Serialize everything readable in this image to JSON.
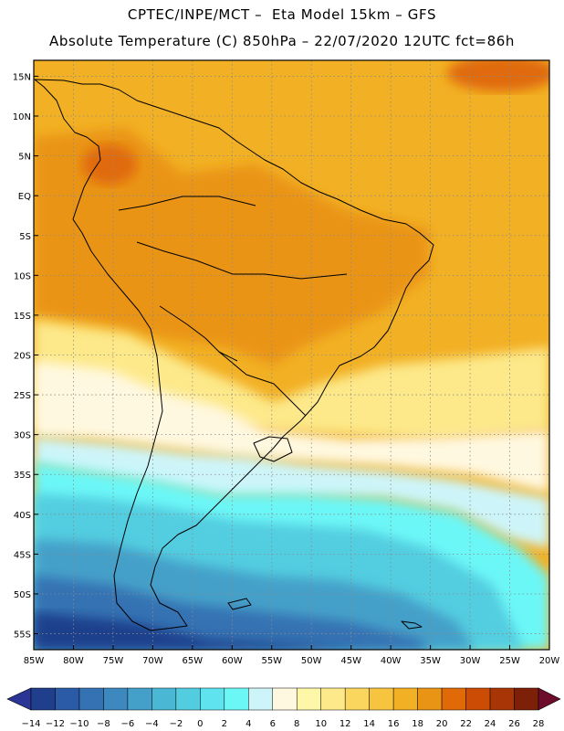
{
  "header": {
    "line1": "CPTEC/INPE/MCT –  Eta Model 15km – GFS",
    "line2": "Absolute Temperature (C) 850hPa – 22/07/2020 12UTC fct=86h"
  },
  "axes": {
    "lat_labels": [
      "15N",
      "10N",
      "5N",
      "EQ",
      "5S",
      "10S",
      "15S",
      "20S",
      "25S",
      "30S",
      "35S",
      "40S",
      "45S",
      "50S",
      "55S"
    ],
    "lat_values": [
      15,
      10,
      5,
      0,
      -5,
      -10,
      -15,
      -20,
      -25,
      -30,
      -35,
      -40,
      -45,
      -50,
      -55
    ],
    "lon_labels": [
      "85W",
      "80W",
      "75W",
      "70W",
      "65W",
      "60W",
      "55W",
      "50W",
      "45W",
      "40W",
      "35W",
      "30W",
      "25W",
      "20W"
    ],
    "lon_values": [
      -85,
      -80,
      -75,
      -70,
      -65,
      -60,
      -55,
      -50,
      -45,
      -40,
      -35,
      -30,
      -25,
      -20
    ],
    "lon_range": [
      -85,
      -20
    ],
    "lat_range": [
      -57,
      17
    ]
  },
  "colorbar": {
    "labels": [
      "-14",
      "-12",
      "-10",
      "-8",
      "-6",
      "-4",
      "-2",
      "0",
      "2",
      "4",
      "6",
      "8",
      "10",
      "12",
      "14",
      "16",
      "18",
      "20",
      "22",
      "24",
      "26",
      "28"
    ],
    "colors": [
      "#1f3f8c",
      "#2b5ba6",
      "#3572b3",
      "#3d88bf",
      "#44a0c9",
      "#4ab8d4",
      "#52cde0",
      "#5fe3ef",
      "#6cf7f7",
      "#cdf5f9",
      "#fff8e0",
      "#fef7a8",
      "#fde98a",
      "#fbd65e",
      "#f6c43e",
      "#f2b024",
      "#ea9416",
      "#e06a08",
      "#cc4c06",
      "#a83506",
      "#7c2108"
    ],
    "low_extend": "#2a3596",
    "high_extend": "#6e0d2b"
  },
  "field": {
    "variable": "Absolute Temperature (C)",
    "level": "850hPa",
    "bands": [
      {
        "name": "warm-north",
        "color": "#f2b024"
      },
      {
        "name": "hot-core",
        "color": "#ea9416"
      },
      {
        "name": "very-hot",
        "color": "#e06a08"
      },
      {
        "name": "mild",
        "color": "#fde98a"
      },
      {
        "name": "cool",
        "color": "#fff8e0"
      },
      {
        "name": "cold-1",
        "color": "#cdf5f9"
      },
      {
        "name": "cold-2",
        "color": "#6cf7f7"
      },
      {
        "name": "cold-3",
        "color": "#52cde0"
      },
      {
        "name": "cold-4",
        "color": "#44a0c9"
      },
      {
        "name": "cold-5",
        "color": "#3572b3"
      },
      {
        "name": "cold-6",
        "color": "#1f3f8c"
      }
    ]
  }
}
